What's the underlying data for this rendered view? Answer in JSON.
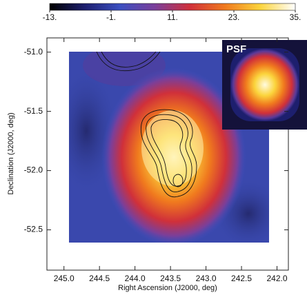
{
  "chart_data": {
    "type": "heatmap",
    "x_label": "Right Ascension (J2000, deg)",
    "y_label": "Declination (J2000, deg)",
    "xlim": [
      245.24,
      241.84
    ],
    "ylim": [
      -52.84,
      -50.88
    ],
    "xticks": [
      {
        "value": 245,
        "label": "245.0"
      },
      {
        "value": 244.5,
        "label": "244.5"
      },
      {
        "value": 244,
        "label": "244.0"
      },
      {
        "value": 243.5,
        "label": "243.5"
      },
      {
        "value": 243,
        "label": "243.0"
      },
      {
        "value": 242.5,
        "label": "242.5"
      },
      {
        "value": 242,
        "label": "242.0"
      }
    ],
    "yticks": [
      {
        "value": -51,
        "label": "-51.0"
      },
      {
        "value": -51.5,
        "label": "-51.5"
      },
      {
        "value": -52,
        "label": "-52.0"
      },
      {
        "value": -52.5,
        "label": "-52.5"
      }
    ],
    "clim": [
      -13,
      35
    ],
    "cticks": [
      {
        "value": -13,
        "label": "-13."
      },
      {
        "value": -1,
        "label": "-1."
      },
      {
        "value": 11,
        "label": "11."
      },
      {
        "value": 23,
        "label": "23."
      },
      {
        "value": 35,
        "label": "35."
      }
    ],
    "colormap": [
      "#000000",
      "#1d1f6e",
      "#3b4fc0",
      "#7a3f9a",
      "#d0303a",
      "#f07a1e",
      "#fbd43c",
      "#ffffff"
    ],
    "inset_label": "PSF"
  }
}
